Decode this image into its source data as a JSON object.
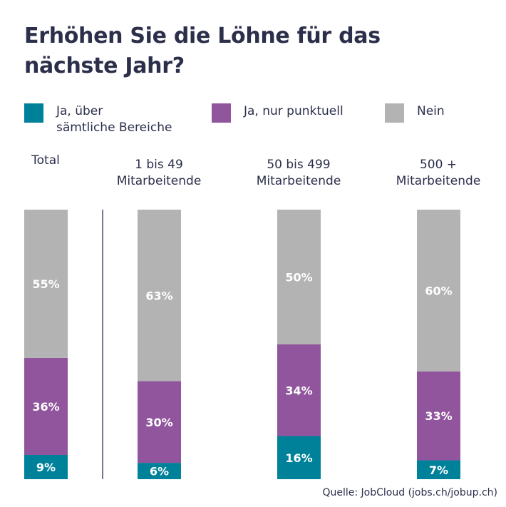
{
  "chart_data": {
    "type": "bar",
    "stacked": true,
    "orientation": "vertical",
    "title": "Erhöhen Sie die Löhne für das nächste Jahr?",
    "categories": [
      "Total",
      "1 bis 49 Mitarbeitende",
      "50 bis 499 Mitarbeitende",
      "500 + Mitarbeitende"
    ],
    "series": [
      {
        "name": "Ja, über sämtliche Bereiche",
        "color": "#00819a",
        "values": [
          9,
          6,
          16,
          7
        ]
      },
      {
        "name": "Ja, nur punktuell",
        "color": "#91559d",
        "values": [
          36,
          30,
          34,
          33
        ]
      },
      {
        "name": "Nein",
        "color": "#b3b3b3",
        "values": [
          55,
          63,
          50,
          60
        ]
      }
    ],
    "unit": "%",
    "ylim": [
      0,
      100
    ],
    "legend_position": "top",
    "grid": false,
    "source": "Quelle: JobCloud (jobs.ch/jobup.ch)"
  },
  "legend": {
    "item0_line1": "Ja, über",
    "item0_line2": "sämtliche Bereiche",
    "item1": "Ja, nur punktuell",
    "item2": "Nein"
  },
  "category_labels": [
    {
      "line1": "",
      "line2": "Total"
    },
    {
      "line1": "1 bis 49",
      "line2": "Mitarbeitende"
    },
    {
      "line1": "50 bis 499",
      "line2": "Mitarbeitende"
    },
    {
      "line1": "500 +",
      "line2": "Mitarbeitende"
    }
  ]
}
